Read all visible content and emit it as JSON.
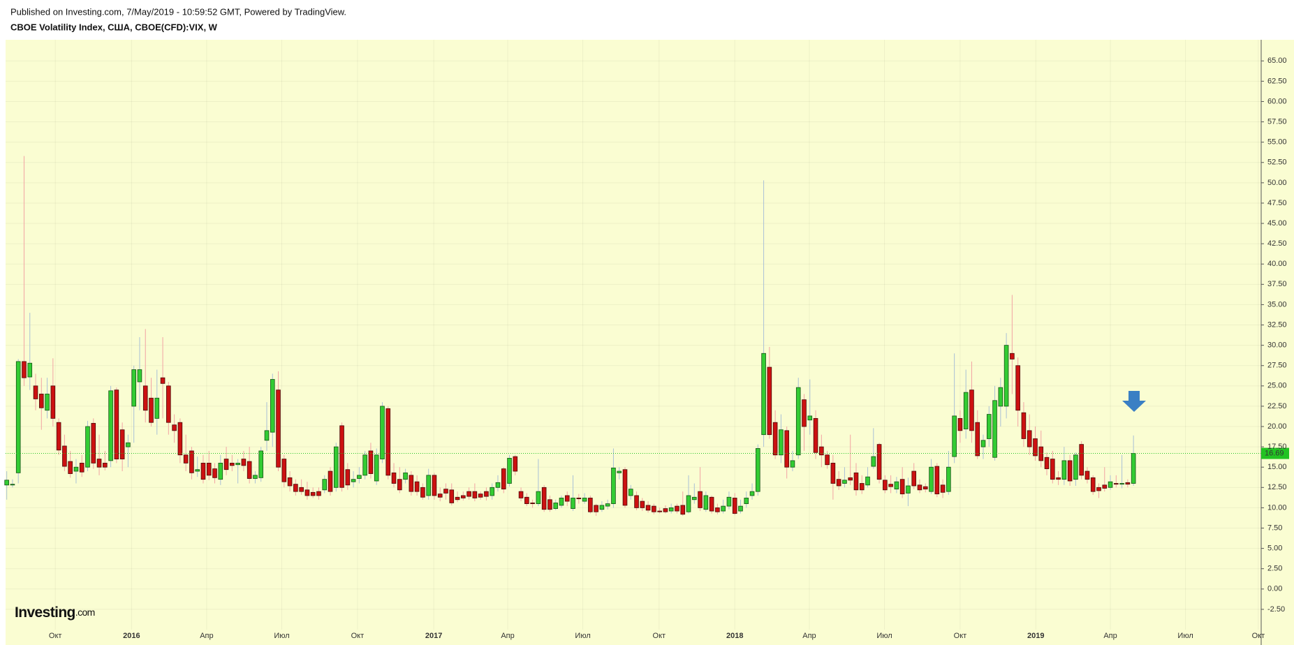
{
  "header": {
    "published": "Published on Investing.com, 7/May/2019 - 10:59:52 GMT, Powered by TradingView."
  },
  "logo": {
    "name": "Investing",
    "suffix": ".com"
  },
  "chart_data": {
    "type": "candlestick",
    "title": "CBOE Volatility Index, США, CBOE(CFD):VIX, W",
    "up_color": "#33cc33",
    "down_color": "#cc1111",
    "wick_up_color": "#a9c0d6",
    "wick_down_color": "#f2a3a3",
    "last_value": 16.69,
    "last_color": "#22c322",
    "grid": true,
    "xlim": [
      -0.2,
      217.1
    ],
    "xticks": [
      {
        "value": 8.4,
        "label": "Окт"
      },
      {
        "value": 21.6,
        "label": "2016"
      },
      {
        "value": 34.6,
        "label": "Апр"
      },
      {
        "value": 47.6,
        "label": "Июл"
      },
      {
        "value": 60.7,
        "label": "Окт"
      },
      {
        "value": 73.9,
        "label": "2017"
      },
      {
        "value": 86.7,
        "label": "Апр"
      },
      {
        "value": 99.7,
        "label": "Июл"
      },
      {
        "value": 112.9,
        "label": "Окт"
      },
      {
        "value": 126,
        "label": "2018"
      },
      {
        "value": 138.9,
        "label": "Апр"
      },
      {
        "value": 151.9,
        "label": "Июл"
      },
      {
        "value": 165,
        "label": "Окт"
      },
      {
        "value": 178.1,
        "label": "2019"
      },
      {
        "value": 191,
        "label": "Апр"
      },
      {
        "value": 204,
        "label": "Июл"
      },
      {
        "value": 216.6,
        "label": "Окт"
      }
    ],
    "ylim": [
      -5,
      67.6
    ],
    "yticks": [
      {
        "value": -2.5,
        "label": "-2.50"
      },
      {
        "value": 0,
        "label": "0.00"
      },
      {
        "value": 2.5,
        "label": "2.50"
      },
      {
        "value": 5,
        "label": "5.00"
      },
      {
        "value": 7.5,
        "label": "7.50"
      },
      {
        "value": 10,
        "label": "10.00"
      },
      {
        "value": 12.5,
        "label": "12.50"
      },
      {
        "value": 15,
        "label": "15.00"
      },
      {
        "value": 17.5,
        "label": "17.50"
      },
      {
        "value": 20,
        "label": "20.00"
      },
      {
        "value": 22.5,
        "label": "22.50"
      },
      {
        "value": 25,
        "label": "25.00"
      },
      {
        "value": 27.5,
        "label": "27.50"
      },
      {
        "value": 30,
        "label": "30.00"
      },
      {
        "value": 32.5,
        "label": "32.50"
      },
      {
        "value": 35,
        "label": "35.00"
      },
      {
        "value": 37.5,
        "label": "37.50"
      },
      {
        "value": 40,
        "label": "40.00"
      },
      {
        "value": 42.5,
        "label": "42.50"
      },
      {
        "value": 45,
        "label": "45.00"
      },
      {
        "value": 47.5,
        "label": "47.50"
      },
      {
        "value": 50,
        "label": "50.00"
      },
      {
        "value": 52.5,
        "label": "52.50"
      },
      {
        "value": 55,
        "label": "55.00"
      },
      {
        "value": 57.5,
        "label": "57.50"
      },
      {
        "value": 60,
        "label": "60.00"
      },
      {
        "value": 62.5,
        "label": "62.50"
      },
      {
        "value": 65,
        "label": "65.00"
      }
    ],
    "open": [
      12.8,
      12.8,
      14.3,
      28,
      26.1,
      25,
      24,
      22,
      25,
      20.5,
      17.6,
      15.7,
      14.5,
      15.5,
      15,
      20.4,
      16,
      15.5,
      15.8,
      24.5,
      19.6,
      17.5,
      22.5,
      25.5,
      25,
      23.5,
      21,
      26,
      25,
      20.2,
      20.5,
      16.5,
      17,
      14.5,
      15.5,
      15.5,
      14.8,
      13.5,
      16,
      15.5,
      15.3,
      16,
      15.7,
      13.6,
      13.7,
      18.3,
      19.3,
      24.5,
      16,
      13.7,
      12.9,
      12.5,
      12.2,
      11.9,
      12,
      12.2,
      14.5,
      12.5,
      20.1,
      14.7,
      13.2,
      13.6,
      14,
      17,
      13.3,
      16,
      22.2,
      14.3,
      13.5,
      13.5,
      14,
      13.2,
      12.5,
      11.5,
      14,
      11.7,
      12.3,
      12.2,
      11.3,
      11.5,
      12,
      12,
      11.7,
      12,
      11.5,
      12.5,
      14.8,
      13,
      16.3,
      12,
      11.3,
      10.6,
      10.5,
      12.5,
      11,
      9.9,
      10.3,
      11.5,
      9.9,
      11.2,
      10.8,
      11.2,
      10.3,
      9.8,
      10.2,
      10.5,
      14.3,
      14.7,
      11.5,
      11.5,
      10.8,
      10.3,
      10.2,
      9.6,
      9.9,
      9.6,
      10.2,
      10.3,
      9.5,
      11,
      12,
      9.8,
      11.3,
      10,
      9.6,
      10.2,
      11.2,
      9.6,
      10.5,
      11.5,
      12,
      19,
      27.3,
      20.5,
      16.5,
      19.5,
      15,
      16.5,
      23.3,
      20.8,
      21,
      17.5,
      16.5,
      15.5,
      13.5,
      13,
      13.7,
      14.3,
      13,
      12.8,
      15.1,
      17.8,
      13.4,
      12.9,
      12.3,
      13.5,
      11.8,
      14.5,
      12.8,
      12.6,
      12,
      15.1,
      12.8,
      12,
      16.3,
      21,
      19.7,
      24.5,
      20.5,
      17.5,
      18.5,
      16.2,
      22.5,
      22.5,
      29,
      27.5,
      21.7,
      19.5,
      18.5,
      17.5,
      16.2,
      16,
      13.7,
      13.5,
      15.8,
      13.5,
      17.8,
      14.5,
      13.7,
      12.5,
      12.8,
      12.5,
      13,
      12.9,
      13.1,
      13
    ],
    "high": [
      14.5,
      13.5,
      28.3,
      53.3,
      34,
      26.5,
      26,
      26,
      28.4,
      21,
      19,
      17,
      16,
      16.5,
      20.7,
      21,
      19,
      17,
      25,
      24.8,
      20.5,
      19,
      27.5,
      31,
      32,
      26,
      27,
      31,
      25.5,
      21.5,
      21,
      19,
      17.5,
      16.3,
      16.5,
      17,
      15.5,
      16.5,
      17.5,
      16.5,
      16,
      17,
      17.5,
      14.5,
      17.5,
      23,
      26.5,
      26.8,
      16.5,
      14.5,
      13.5,
      13.5,
      13.2,
      12.5,
      12.5,
      14,
      15,
      18,
      20.5,
      15.5,
      14.5,
      15,
      17,
      18,
      17.3,
      23,
      22.5,
      15.5,
      15,
      14.8,
      14.5,
      14,
      13,
      14.8,
      14.3,
      12.5,
      13,
      13,
      12,
      12,
      12.5,
      13,
      12,
      12.5,
      13,
      14,
      15,
      16.5,
      16.5,
      12.5,
      11.8,
      11,
      16,
      12.8,
      11.5,
      11,
      11.5,
      12,
      14,
      11.7,
      11.8,
      11.5,
      10.5,
      10.8,
      11,
      17.3,
      15,
      15,
      12.8,
      12,
      11.2,
      10.8,
      10.5,
      10,
      10.3,
      10.5,
      10.5,
      12,
      14,
      13,
      15,
      12,
      11.5,
      10.5,
      11,
      12,
      11.8,
      11,
      12,
      13,
      17.8,
      50.3,
      29.8,
      22,
      21.5,
      20,
      17,
      26,
      24,
      25.8,
      22,
      19,
      17,
      16.5,
      14.5,
      15,
      19,
      15.5,
      14,
      15,
      19.8,
      18,
      14,
      14,
      13.8,
      15,
      13.7,
      15.5,
      13.5,
      13,
      16,
      15.5,
      13.5,
      17,
      29,
      22,
      27,
      28,
      22,
      19,
      22.5,
      25,
      26,
      31.5,
      36.2,
      28.5,
      23,
      21.5,
      20,
      19.5,
      16.8,
      17,
      14.5,
      17.5,
      16.5,
      16.8,
      18.2,
      15,
      14,
      13,
      15,
      14,
      14,
      16.5,
      13.5,
      18.9
    ],
    "low": [
      11,
      12.5,
      13,
      25,
      24.5,
      22,
      19.6,
      21,
      20,
      16.5,
      14.5,
      13.7,
      13,
      13.8,
      14.5,
      14.8,
      14,
      14.6,
      15,
      15.5,
      14.5,
      15,
      18,
      22,
      20.5,
      20,
      19,
      21,
      19,
      18,
      15.5,
      14.5,
      13.5,
      13.8,
      13,
      13.4,
      13,
      12.8,
      14,
      14.5,
      13,
      14.5,
      13,
      13,
      13.2,
      17,
      17.5,
      14.5,
      12.5,
      12,
      11.5,
      11.6,
      11,
      11.2,
      11,
      11.8,
      11.5,
      12,
      12,
      12.2,
      12.5,
      13,
      13.5,
      13.6,
      12.8,
      15.5,
      13.5,
      12.5,
      11.8,
      13,
      11.5,
      11.5,
      11,
      11,
      11,
      10.8,
      11,
      10.3,
      10.7,
      10.9,
      11,
      10.8,
      11,
      10.9,
      11,
      12,
      11.8,
      12.6,
      14,
      10.8,
      10.2,
      10,
      10.2,
      9.5,
      9.5,
      9.7,
      10,
      10.2,
      9.6,
      10.5,
      10.5,
      9.3,
      9,
      9.5,
      9.8,
      10,
      13.5,
      10,
      11,
      9.7,
      9.6,
      9.4,
      9.2,
      9.3,
      9.3,
      9.3,
      9.3,
      9,
      9.3,
      10.5,
      9.6,
      9.5,
      9.3,
      9.2,
      9.3,
      9.8,
      9.1,
      9.3,
      10,
      11,
      11.5,
      17.5,
      18.5,
      16,
      15.5,
      13.6,
      14.5,
      16,
      17,
      19,
      16,
      15,
      14.8,
      11,
      12.2,
      12.5,
      12.8,
      11.5,
      11.7,
      12.5,
      14.8,
      13,
      11.8,
      11.8,
      11.8,
      11.2,
      10.2,
      12.3,
      11.8,
      11.9,
      11.7,
      11.3,
      11.2,
      11.6,
      15.5,
      18,
      18.5,
      18,
      16,
      16,
      17.5,
      15.8,
      20,
      21,
      24,
      20,
      17.5,
      16.5,
      15.8,
      15,
      14,
      13,
      12.8,
      12.8,
      12.7,
      12.7,
      13.5,
      13,
      11.6,
      11.2,
      12,
      12.2,
      12.5,
      12.4,
      12.5,
      12.7
    ],
    "close": [
      13.4,
      12.9,
      28,
      26,
      27.8,
      23.4,
      22.3,
      24,
      21,
      17.1,
      15.1,
      14.2,
      15,
      14.4,
      20,
      15.5,
      15,
      15,
      24.4,
      16,
      16,
      18,
      27,
      27,
      22,
      20.5,
      23.5,
      25.3,
      20.5,
      19.5,
      16.5,
      15.5,
      14.3,
      14.7,
      13.5,
      14,
      13.7,
      15.5,
      14.7,
      15.2,
      15.5,
      15.2,
      13.6,
      14,
      17,
      19.5,
      25.8,
      15,
      13.2,
      12.7,
      12,
      12,
      11.5,
      11.5,
      11.5,
      13.5,
      12,
      17.5,
      12.5,
      12.8,
      13.5,
      14,
      16.5,
      14.2,
      16.5,
      22.5,
      14,
      13,
      12.2,
      14.3,
      12,
      12,
      11.3,
      14,
      11.5,
      11.3,
      11.8,
      10.6,
      11,
      11.2,
      11.4,
      11.2,
      11.3,
      11.4,
      12.5,
      13.1,
      12.3,
      16.1,
      14.5,
      11.2,
      10.5,
      10.5,
      12,
      9.8,
      9.8,
      10.6,
      11.2,
      10.8,
      11.2,
      11.1,
      11.2,
      9.5,
      9.5,
      10.3,
      10.5,
      14.9,
      14.5,
      10.3,
      12.3,
      10,
      10,
      9.7,
      9.5,
      9.5,
      9.5,
      10,
      9.6,
      9.2,
      11.5,
      11.3,
      10,
      11.5,
      9.6,
      9.5,
      10.2,
      11.3,
      9.3,
      10.2,
      11.2,
      12,
      17.3,
      29,
      19,
      16.5,
      19.6,
      15,
      15.8,
      24.8,
      20,
      21.3,
      16.8,
      16.5,
      15.3,
      13,
      12.7,
      13.4,
      13.4,
      12.2,
      12.2,
      13.8,
      16.3,
      13.5,
      12.2,
      12.6,
      13.2,
      11.7,
      12.7,
      12.7,
      12.2,
      12.3,
      15,
      11.7,
      11.9,
      15,
      21.3,
      19.5,
      24.2,
      19.5,
      16.4,
      18.3,
      21.5,
      23.2,
      24.8,
      30,
      28.3,
      22,
      18.5,
      17.5,
      16.4,
      15.8,
      14.8,
      13.5,
      13.5,
      15.8,
      13.3,
      16.5,
      14,
      13.5,
      12,
      12.1,
      12.4,
      13.2,
      12.9,
      13,
      12.9,
      16.69
    ]
  }
}
